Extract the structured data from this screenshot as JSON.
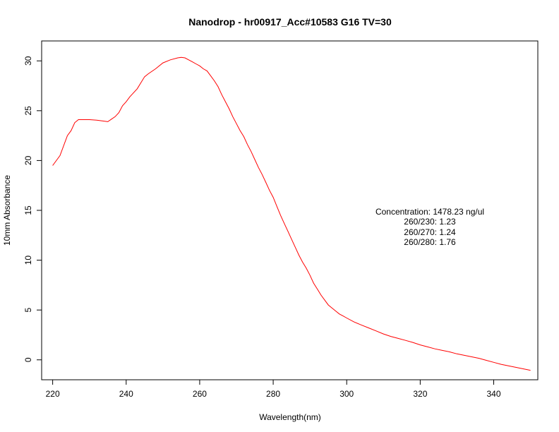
{
  "chart_data": {
    "type": "line",
    "title": "Nanodrop - hr00917_Acc#10583 G16 TV=30",
    "xlabel": "Wavelength(nm)",
    "ylabel": "10mm Absorbance",
    "xlim": [
      217,
      352
    ],
    "ylim": [
      -2,
      32
    ],
    "xticks": [
      220,
      240,
      260,
      280,
      300,
      320,
      340
    ],
    "yticks": [
      0,
      5,
      10,
      15,
      20,
      25,
      30
    ],
    "grid": false,
    "legend": "none",
    "series": [
      {
        "color": "#ff0000",
        "x": [
          220,
          222,
          224,
          225,
          226,
          227,
          228,
          230,
          232,
          234,
          235,
          236,
          237,
          238,
          239,
          240,
          241,
          242,
          243,
          244,
          245,
          246,
          248,
          250,
          252,
          254,
          255,
          256,
          257,
          258,
          259,
          260,
          261,
          262,
          263,
          264,
          265,
          266,
          267,
          268,
          269,
          270,
          271,
          272,
          273,
          274,
          275,
          276,
          277,
          278,
          279,
          280,
          281,
          282,
          283,
          284,
          285,
          286,
          287,
          288,
          289,
          290,
          291,
          292,
          293,
          294,
          295,
          296,
          297,
          298,
          299,
          300,
          302,
          304,
          306,
          308,
          310,
          312,
          314,
          316,
          318,
          320,
          322,
          324,
          326,
          328,
          330,
          332,
          334,
          336,
          338,
          340,
          342,
          344,
          346,
          348,
          350
        ],
        "y": [
          19.5,
          20.5,
          22.5,
          23.0,
          23.8,
          24.1,
          24.1,
          24.1,
          24.05,
          23.95,
          23.9,
          24.15,
          24.4,
          24.8,
          25.5,
          25.9,
          26.4,
          26.8,
          27.2,
          27.8,
          28.4,
          28.7,
          29.2,
          29.8,
          30.1,
          30.3,
          30.35,
          30.3,
          30.1,
          29.9,
          29.7,
          29.5,
          29.2,
          29.0,
          28.5,
          28.0,
          27.4,
          26.6,
          25.9,
          25.2,
          24.4,
          23.7,
          23.0,
          22.4,
          21.6,
          20.9,
          20.1,
          19.3,
          18.6,
          17.8,
          17.0,
          16.3,
          15.4,
          14.5,
          13.7,
          12.9,
          12.1,
          11.3,
          10.5,
          9.8,
          9.2,
          8.5,
          7.7,
          7.1,
          6.5,
          6.0,
          5.5,
          5.2,
          4.9,
          4.6,
          4.4,
          4.2,
          3.8,
          3.5,
          3.2,
          2.9,
          2.6,
          2.35,
          2.15,
          1.95,
          1.75,
          1.5,
          1.3,
          1.1,
          0.95,
          0.8,
          0.6,
          0.45,
          0.3,
          0.15,
          -0.05,
          -0.25,
          -0.45,
          -0.6,
          -0.75,
          -0.9,
          -1.05
        ]
      }
    ],
    "annotations": [
      "Concentration: 1478.23 ng/ul",
      "260/230: 1.23",
      "260/270: 1.24",
      "260/280: 1.76"
    ]
  }
}
